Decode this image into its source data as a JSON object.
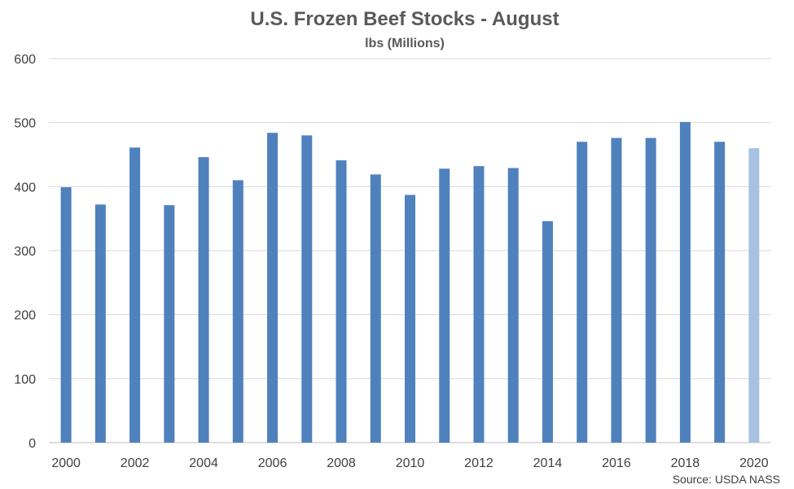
{
  "chart_data": {
    "type": "bar",
    "title": "U.S. Frozen Beef Stocks - August",
    "subtitle": "lbs (Millions)",
    "source": "Source: USDA NASS",
    "categories": [
      "2000",
      "2001",
      "2002",
      "2003",
      "2004",
      "2005",
      "2006",
      "2007",
      "2008",
      "2009",
      "2010",
      "2011",
      "2012",
      "2013",
      "2014",
      "2015",
      "2016",
      "2017",
      "2018",
      "2019",
      "2020"
    ],
    "values": [
      399,
      372,
      461,
      371,
      446,
      410,
      484,
      480,
      441,
      419,
      387,
      428,
      432,
      429,
      346,
      470,
      476,
      476,
      501,
      470,
      460
    ],
    "ylim": [
      0,
      600
    ],
    "yticks": [
      0,
      100,
      200,
      300,
      400,
      500,
      600
    ],
    "xtick_labels": [
      "2000",
      "2002",
      "2004",
      "2006",
      "2008",
      "2010",
      "2012",
      "2014",
      "2016",
      "2018",
      "2020"
    ],
    "grid": true,
    "legend": "none",
    "colors": {
      "bar": "#4F81BD",
      "bar_highlight": "#A6C2E0",
      "grid": "#D9D9D9",
      "axis": "#BFBFBF"
    },
    "highlight_category": "2020"
  }
}
